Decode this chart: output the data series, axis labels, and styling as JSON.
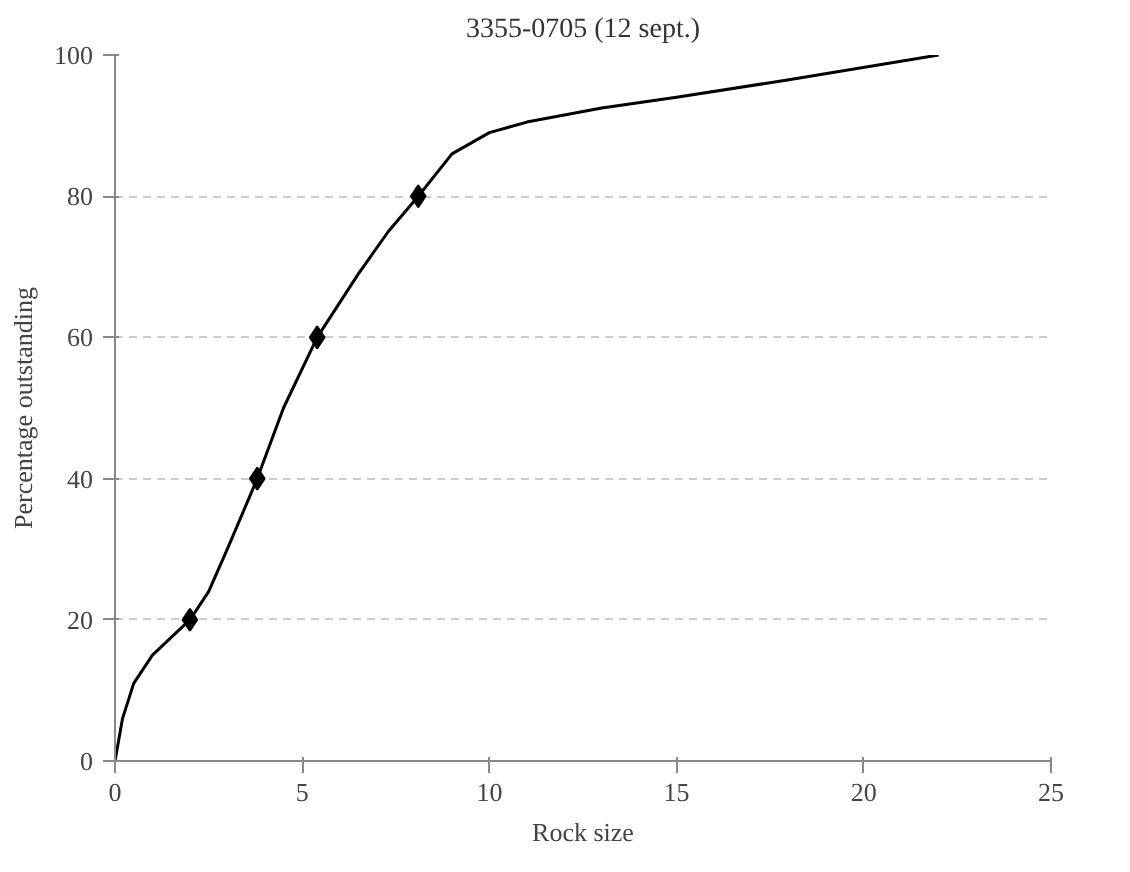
{
  "chart_data": {
    "type": "line",
    "title": "3355-0705 (12 sept.)",
    "xlabel": "Rock size",
    "ylabel": "Percentage outstanding",
    "xlim": [
      0,
      25
    ],
    "ylim": [
      0,
      100
    ],
    "xticks": [
      0,
      5,
      10,
      15,
      20,
      25
    ],
    "yticks": [
      0,
      20,
      40,
      60,
      80,
      100
    ],
    "grid": "y",
    "series": [
      {
        "color": "#000000",
        "marker": "none",
        "line_style": "solid",
        "x": [
          0,
          0.2,
          0.5,
          1,
          1.5,
          2,
          2.5,
          3,
          3.8,
          4.5,
          5.4,
          6.5,
          7.3,
          8.1,
          9,
          10,
          11,
          13,
          15,
          18,
          22
        ],
        "values": [
          0,
          6,
          11,
          15,
          17.5,
          20,
          24,
          30,
          40,
          50,
          60,
          69,
          75,
          80,
          86,
          89,
          90.5,
          92.5,
          94,
          96.5,
          100
        ]
      },
      {
        "type": "scatter",
        "color": "#000000",
        "marker": "diamond",
        "x": [
          2,
          3.8,
          5.4,
          8.1
        ],
        "values": [
          20,
          40,
          60,
          80
        ]
      }
    ]
  }
}
